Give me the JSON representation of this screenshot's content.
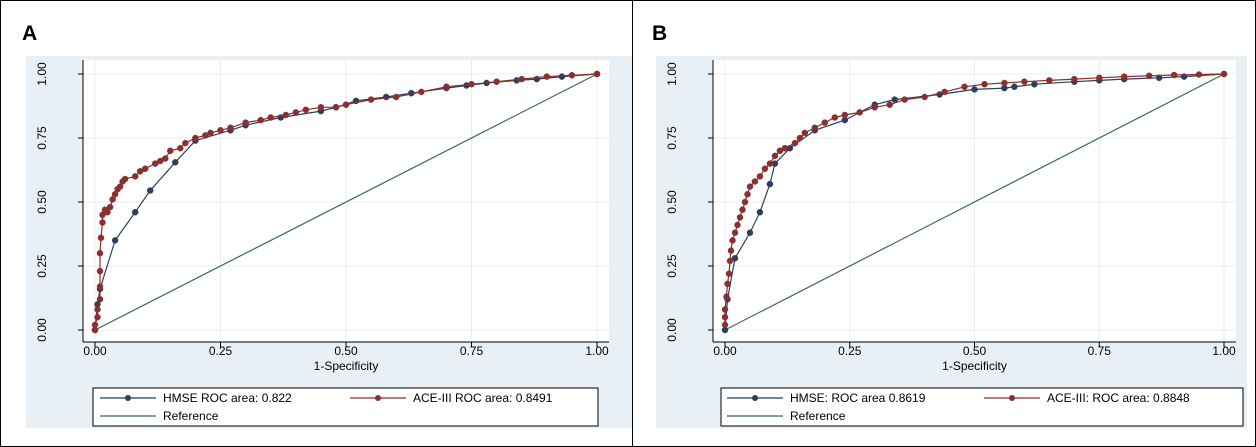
{
  "chart_data": [
    {
      "type": "line",
      "panel_label": "A",
      "xlabel": "1-Specificity",
      "ylabel": "",
      "xlim": [
        0,
        1
      ],
      "ylim": [
        0,
        1
      ],
      "x_ticks": [
        "0.00",
        "0.25",
        "0.50",
        "0.75",
        "1.00"
      ],
      "y_ticks": [
        "0.00",
        "0.25",
        "0.50",
        "0.75",
        "1.00"
      ],
      "grid": true,
      "legend_position": "bottom",
      "series": [
        {
          "name": "HMSE ROC area: 0.822",
          "color": "#2b3f5c",
          "markers": true,
          "x": [
            0.0,
            0.005,
            0.01,
            0.04,
            0.08,
            0.11,
            0.16,
            0.2,
            0.27,
            0.3,
            0.37,
            0.45,
            0.48,
            0.52,
            0.58,
            0.63,
            0.7,
            0.74,
            0.78,
            0.84,
            0.88,
            0.93,
            1.0
          ],
          "y": [
            0.0,
            0.1,
            0.16,
            0.35,
            0.46,
            0.545,
            0.655,
            0.74,
            0.78,
            0.8,
            0.83,
            0.855,
            0.87,
            0.895,
            0.91,
            0.925,
            0.945,
            0.955,
            0.965,
            0.975,
            0.98,
            0.99,
            1.0
          ]
        },
        {
          "name": "ACE-III ROC area: 0.8491",
          "color": "#8b2f2f",
          "markers": true,
          "x": [
            0.0,
            0.0,
            0.005,
            0.005,
            0.01,
            0.01,
            0.01,
            0.01,
            0.012,
            0.015,
            0.015,
            0.02,
            0.025,
            0.03,
            0.035,
            0.04,
            0.045,
            0.05,
            0.055,
            0.06,
            0.08,
            0.09,
            0.1,
            0.12,
            0.13,
            0.14,
            0.15,
            0.17,
            0.18,
            0.2,
            0.22,
            0.23,
            0.25,
            0.27,
            0.3,
            0.33,
            0.35,
            0.38,
            0.4,
            0.42,
            0.45,
            0.48,
            0.5,
            0.55,
            0.6,
            0.65,
            0.7,
            0.75,
            0.8,
            0.85,
            0.9,
            0.95,
            1.0
          ],
          "y": [
            0.0,
            0.02,
            0.05,
            0.08,
            0.12,
            0.17,
            0.23,
            0.3,
            0.36,
            0.42,
            0.45,
            0.47,
            0.46,
            0.48,
            0.51,
            0.53,
            0.55,
            0.56,
            0.58,
            0.59,
            0.6,
            0.62,
            0.63,
            0.65,
            0.66,
            0.67,
            0.7,
            0.71,
            0.73,
            0.75,
            0.76,
            0.77,
            0.78,
            0.79,
            0.81,
            0.82,
            0.83,
            0.84,
            0.85,
            0.86,
            0.87,
            0.87,
            0.88,
            0.9,
            0.91,
            0.93,
            0.95,
            0.96,
            0.97,
            0.98,
            0.99,
            0.995,
            1.0
          ]
        },
        {
          "name": "Reference",
          "color": "#3b6b55",
          "markers": false,
          "x": [
            0,
            1
          ],
          "y": [
            0,
            1
          ]
        }
      ]
    },
    {
      "type": "line",
      "panel_label": "B",
      "xlabel": "1-Specificity",
      "ylabel": "",
      "xlim": [
        0,
        1
      ],
      "ylim": [
        0,
        1
      ],
      "x_ticks": [
        "0.00",
        "0.25",
        "0.50",
        "0.75",
        "1.00"
      ],
      "y_ticks": [
        "0.00",
        "0.25",
        "0.50",
        "0.75",
        "1.00"
      ],
      "grid": true,
      "legend_position": "bottom",
      "series": [
        {
          "name": "HMSE: ROC area 0.8619",
          "color": "#2b3f5c",
          "markers": true,
          "x": [
            0.0,
            0.005,
            0.02,
            0.05,
            0.07,
            0.09,
            0.1,
            0.13,
            0.18,
            0.24,
            0.3,
            0.34,
            0.43,
            0.5,
            0.56,
            0.58,
            0.62,
            0.7,
            0.75,
            0.8,
            0.87,
            0.92,
            1.0
          ],
          "y": [
            0.0,
            0.12,
            0.28,
            0.38,
            0.46,
            0.57,
            0.65,
            0.71,
            0.78,
            0.82,
            0.88,
            0.9,
            0.92,
            0.94,
            0.945,
            0.95,
            0.96,
            0.97,
            0.975,
            0.98,
            0.985,
            0.99,
            1.0
          ]
        },
        {
          "name": "ACE-III: ROC area: 0.8848",
          "color": "#8b2f2f",
          "markers": true,
          "x": [
            0.0,
            0.0,
            0.0,
            0.003,
            0.005,
            0.008,
            0.01,
            0.012,
            0.015,
            0.02,
            0.025,
            0.03,
            0.035,
            0.04,
            0.045,
            0.05,
            0.06,
            0.07,
            0.08,
            0.09,
            0.1,
            0.11,
            0.12,
            0.14,
            0.15,
            0.16,
            0.18,
            0.2,
            0.22,
            0.24,
            0.27,
            0.3,
            0.33,
            0.36,
            0.4,
            0.44,
            0.48,
            0.52,
            0.56,
            0.6,
            0.65,
            0.7,
            0.75,
            0.8,
            0.85,
            0.9,
            0.95,
            1.0
          ],
          "y": [
            0.02,
            0.05,
            0.08,
            0.13,
            0.18,
            0.22,
            0.27,
            0.31,
            0.35,
            0.38,
            0.41,
            0.44,
            0.47,
            0.5,
            0.53,
            0.56,
            0.58,
            0.6,
            0.63,
            0.65,
            0.68,
            0.7,
            0.71,
            0.73,
            0.75,
            0.77,
            0.79,
            0.81,
            0.83,
            0.84,
            0.85,
            0.87,
            0.88,
            0.9,
            0.91,
            0.93,
            0.95,
            0.96,
            0.965,
            0.97,
            0.975,
            0.98,
            0.985,
            0.99,
            0.993,
            0.996,
            0.998,
            1.0
          ]
        },
        {
          "name": "Reference",
          "color": "#3b6b55",
          "markers": false,
          "x": [
            0,
            1
          ],
          "y": [
            0,
            1
          ]
        }
      ]
    }
  ]
}
